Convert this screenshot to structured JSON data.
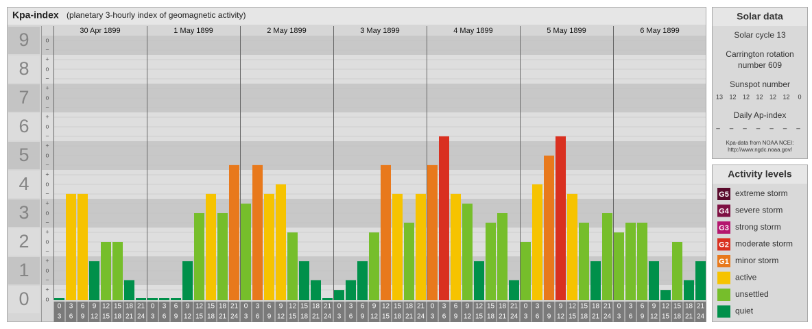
{
  "chart_data": {
    "type": "bar",
    "title": "Kpa-index",
    "subtitle": "(planetary 3-hourly index of geomagnetic activity)",
    "ylim": [
      0,
      9
    ],
    "yticks": [
      0,
      1,
      2,
      3,
      4,
      5,
      6,
      7,
      8,
      9
    ],
    "sub_labels": [
      "−",
      "o",
      "+"
    ],
    "hours": [
      0,
      3,
      6,
      9,
      12,
      15,
      18,
      21,
      24
    ],
    "days": [
      {
        "label": "30 Apr 1899",
        "values": [
          0,
          3.67,
          3.67,
          1.33,
          2,
          2,
          0.67,
          0
        ],
        "colors": [
          "#00904a",
          "#f6c300",
          "#f6c300",
          "#00904a",
          "#76be2b",
          "#76be2b",
          "#00904a",
          "#00904a"
        ]
      },
      {
        "label": "1 May 1899",
        "values": [
          0,
          0,
          0,
          1.33,
          3,
          3.67,
          3,
          4.67
        ],
        "colors": [
          "#00904a",
          "#00904a",
          "#00904a",
          "#00904a",
          "#76be2b",
          "#f6c300",
          "#76be2b",
          "#e8791c"
        ]
      },
      {
        "label": "2 May 1899",
        "values": [
          3.33,
          4.67,
          3.67,
          4,
          2.33,
          1.33,
          0.67,
          0
        ],
        "colors": [
          "#76be2b",
          "#e8791c",
          "#f6c300",
          "#f6c300",
          "#76be2b",
          "#00904a",
          "#00904a",
          "#00904a"
        ]
      },
      {
        "label": "3 May 1899",
        "values": [
          0.33,
          0.67,
          1.33,
          2.33,
          4.67,
          3.67,
          2.67,
          3.67
        ],
        "colors": [
          "#00904a",
          "#00904a",
          "#00904a",
          "#76be2b",
          "#e8791c",
          "#f6c300",
          "#76be2b",
          "#f6c300"
        ]
      },
      {
        "label": "4 May 1899",
        "values": [
          4.67,
          5.67,
          3.67,
          3.33,
          1.33,
          2.67,
          3,
          0.67
        ],
        "colors": [
          "#e8791c",
          "#d93020",
          "#f6c300",
          "#76be2b",
          "#00904a",
          "#76be2b",
          "#76be2b",
          "#00904a"
        ]
      },
      {
        "label": "5 May 1899",
        "values": [
          2,
          4,
          5,
          5.67,
          3.67,
          2.67,
          1.33,
          3
        ],
        "colors": [
          "#76be2b",
          "#f6c300",
          "#e8791c",
          "#d93020",
          "#f6c300",
          "#76be2b",
          "#00904a",
          "#76be2b"
        ]
      },
      {
        "label": "6 May 1899",
        "values": [
          2.33,
          2.67,
          2.67,
          1.33,
          0.33,
          2,
          0.67,
          1.33
        ],
        "colors": [
          "#76be2b",
          "#76be2b",
          "#76be2b",
          "#00904a",
          "#00904a",
          "#76be2b",
          "#00904a",
          "#00904a"
        ]
      }
    ]
  },
  "solar": {
    "title": "Solar data",
    "cycle": "Solar cycle 13",
    "carrington": [
      "Carrington rotation",
      "number 609"
    ],
    "sunspot_title": "Sunspot number",
    "sunspots": [
      13,
      12,
      12,
      12,
      12,
      12,
      0
    ],
    "ap_title": "Daily Ap-index",
    "ap": [
      "–",
      "–",
      "–",
      "–",
      "–",
      "–",
      "–"
    ],
    "source": [
      "Kpa-data from NOAA NCEI:",
      "http://www.ngdc.noaa.gov/"
    ]
  },
  "activity": {
    "title": "Activity levels",
    "levels": [
      {
        "badge": "G5",
        "label": "extreme storm",
        "color": "#5a0a2c"
      },
      {
        "badge": "G4",
        "label": "severe storm",
        "color": "#7e1042"
      },
      {
        "badge": "G3",
        "label": "strong storm",
        "color": "#b4166e"
      },
      {
        "badge": "G2",
        "label": "moderate storm",
        "color": "#d93020"
      },
      {
        "badge": "G1",
        "label": "minor storm",
        "color": "#e8791c"
      },
      {
        "label": "active",
        "color": "#f6c300"
      },
      {
        "label": "unsettled",
        "color": "#76be2b"
      },
      {
        "label": "quiet",
        "color": "#00904a"
      }
    ]
  }
}
